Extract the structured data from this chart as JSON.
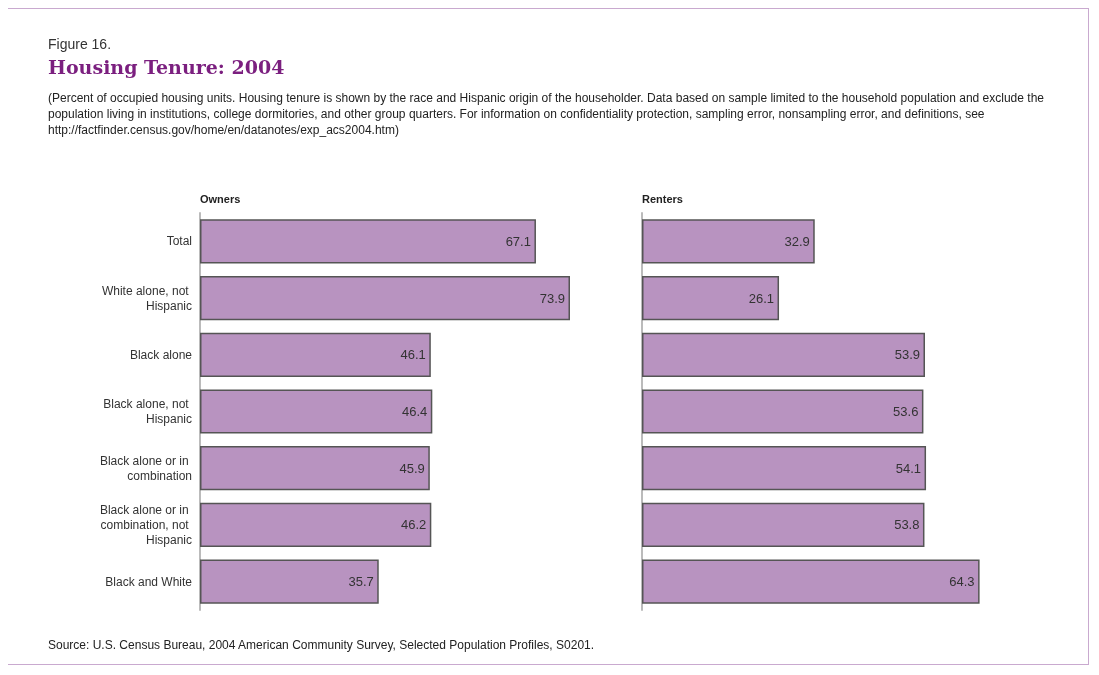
{
  "chart_data": [
    {
      "type": "bar",
      "orientation": "horizontal",
      "title": "Housing Tenure: 2004",
      "subtitle": "(Percent of occupied housing units. Housing tenure is shown by the race and Hispanic origin of the householder.  Data based on sample limited to the household population and exclude the population living in institutions, college dormitories, and other group quarters.  For information on confidentiality protection, sampling error, nonsampling error, and definitions, see http://factfinder.census.gov/home/en/datanotes/exp_acs2004.htm)",
      "xlabel": "Owners",
      "annotations": [
        "Figure 16.",
        "Source: U.S. Census Bureau, 2004 American Community Survey, Selected Population Profiles, S0201."
      ],
      "categories": [
        "Total",
        "White alone, not Hispanic",
        "Black alone",
        "Black alone, not Hispanic",
        "Black alone or in combination",
        "Black alone or in combination, not Hispanic",
        "Black and White"
      ],
      "values": [
        67.1,
        73.9,
        46.1,
        46.4,
        45.9,
        46.2,
        35.7
      ],
      "color": "#b893c0",
      "data_labels": true,
      "tick_labels": "y"
    },
    {
      "type": "bar",
      "orientation": "horizontal",
      "xlabel": "Renters",
      "categories": [
        "Total",
        "White alone, not Hispanic",
        "Black alone",
        "Black alone, not Hispanic",
        "Black alone or in combination",
        "Black alone or in combination, not Hispanic",
        "Black and White"
      ],
      "values": [
        32.9,
        26.1,
        53.9,
        53.6,
        54.1,
        53.8,
        64.3
      ],
      "color": "#b893c0",
      "data_labels": true,
      "tick_labels": false
    }
  ]
}
